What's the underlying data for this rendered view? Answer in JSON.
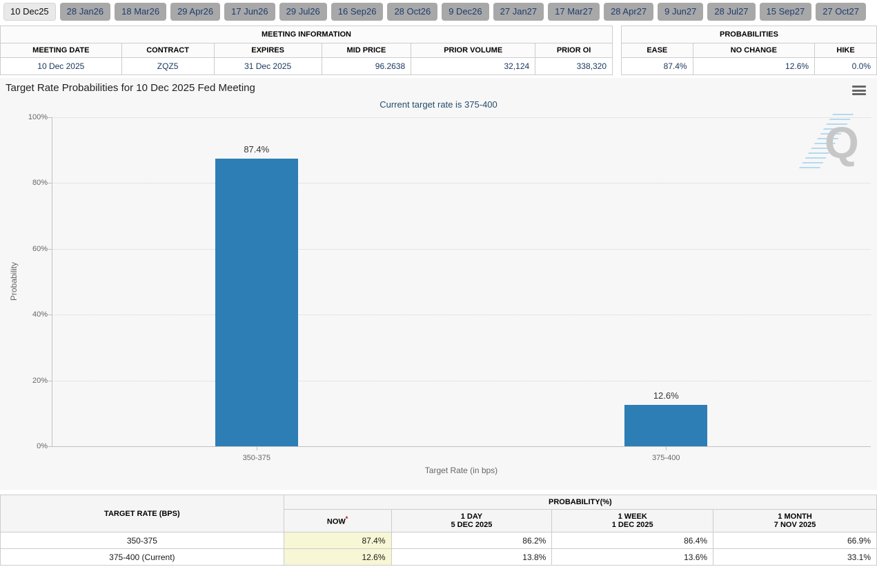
{
  "tabs": [
    {
      "label": "10 Dec25",
      "selected": true
    },
    {
      "label": "28 Jan26",
      "selected": false
    },
    {
      "label": "18 Mar26",
      "selected": false
    },
    {
      "label": "29 Apr26",
      "selected": false
    },
    {
      "label": "17 Jun26",
      "selected": false
    },
    {
      "label": "29 Jul26",
      "selected": false
    },
    {
      "label": "16 Sep26",
      "selected": false
    },
    {
      "label": "28 Oct26",
      "selected": false
    },
    {
      "label": "9 Dec26",
      "selected": false
    },
    {
      "label": "27 Jan27",
      "selected": false
    },
    {
      "label": "17 Mar27",
      "selected": false
    },
    {
      "label": "28 Apr27",
      "selected": false
    },
    {
      "label": "9 Jun27",
      "selected": false
    },
    {
      "label": "28 Jul27",
      "selected": false
    },
    {
      "label": "15 Sep27",
      "selected": false
    },
    {
      "label": "27 Oct27",
      "selected": false
    }
  ],
  "meeting_info": {
    "title": "MEETING INFORMATION",
    "columns": [
      "MEETING DATE",
      "CONTRACT",
      "EXPIRES",
      "MID PRICE",
      "PRIOR VOLUME",
      "PRIOR OI"
    ],
    "col_widths_pct": [
      19.8,
      15.1,
      17.6,
      14.6,
      20.3,
      12.6
    ],
    "value_align": [
      "center",
      "center",
      "center",
      "right",
      "right",
      "right"
    ],
    "values": [
      "10 Dec 2025",
      "ZQZ5",
      "31 Dec 2025",
      "96.2638",
      "32,124",
      "338,320"
    ]
  },
  "probabilities_summary": {
    "title": "PROBABILITIES",
    "columns": [
      "EASE",
      "NO CHANGE",
      "HIKE"
    ],
    "col_widths_pct": [
      28,
      47.7,
      24.3
    ],
    "value_align": [
      "right",
      "right",
      "right"
    ],
    "values": [
      "87.4%",
      "12.6%",
      "0.0%"
    ]
  },
  "chart": {
    "title": "Target Rate Probabilities for 10 Dec 2025 Fed Meeting",
    "subtitle": "Current target rate is 375-400",
    "menu_icon": "hamburger-menu-icon",
    "watermark_letter": "Q"
  },
  "chart_data": {
    "type": "bar",
    "title": "Target Rate Probabilities for 10 Dec 2025 Fed Meeting",
    "subtitle": "Current target rate is 375-400",
    "categories": [
      "350-375",
      "375-400"
    ],
    "values": [
      87.4,
      12.6
    ],
    "value_labels": [
      "87.4%",
      "12.6%"
    ],
    "xlabel": "Target Rate (in bps)",
    "ylabel": "Probability",
    "ylim": [
      0,
      100
    ],
    "ytick_values": [
      0,
      20,
      40,
      60,
      80,
      100
    ],
    "ytick_labels": [
      "0%",
      "20%",
      "40%",
      "60%",
      "80%",
      "100%"
    ],
    "bar_color": "#2d7eb5",
    "grid": "horizontal-dotted",
    "legend": "none"
  },
  "history_table": {
    "row_header": "TARGET RATE (BPS)",
    "group_header": "PROBABILITY(%)",
    "col_widths_pct": [
      32.34,
      12.27,
      18.33,
      18.41,
      18.65
    ],
    "columns": [
      {
        "line1": "NOW",
        "sup": "*",
        "line2": ""
      },
      {
        "line1": "1 DAY",
        "sup": "",
        "line2": "5 DEC 2025"
      },
      {
        "line1": "1 WEEK",
        "sup": "",
        "line2": "1 DEC 2025"
      },
      {
        "line1": "1 MONTH",
        "sup": "",
        "line2": "7 NOV 2025"
      }
    ],
    "rows": [
      {
        "label": "350-375",
        "values": [
          "87.4%",
          "86.2%",
          "86.4%",
          "66.9%"
        ]
      },
      {
        "label": "375-400 (Current)",
        "values": [
          "12.6%",
          "13.8%",
          "13.6%",
          "33.1%"
        ]
      }
    ]
  },
  "colors": {
    "bar": "#2d7eb5",
    "chart_background": "#f7f7f7",
    "now_column_highlight": "#f7f6d5",
    "subtitle_text": "#274b6d",
    "summary_value_text": "#17365d",
    "tab_selected_bg": "#e9e9e9",
    "tab_unselected_bg": "#a8a8a8"
  }
}
